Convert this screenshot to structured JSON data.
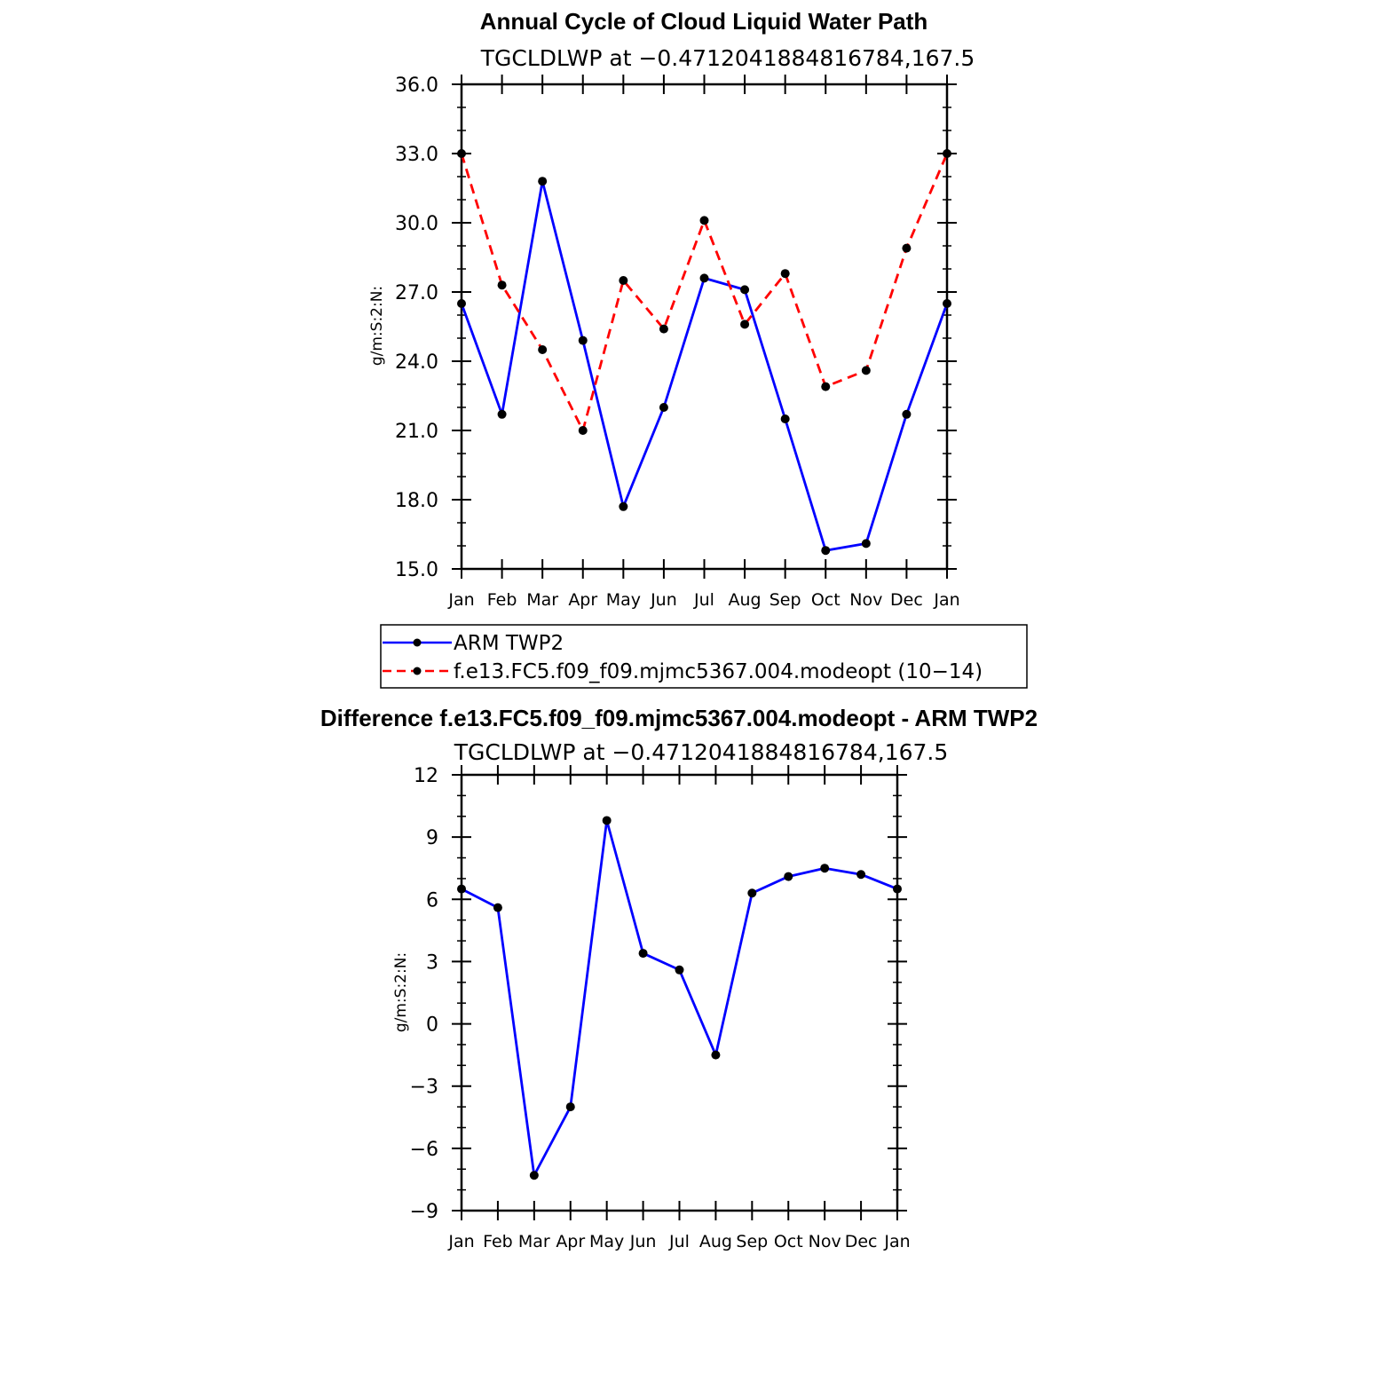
{
  "chart_data": [
    {
      "type": "line",
      "title": "Annual Cycle of Cloud Liquid Water Path",
      "subtitle": "TGCLDLWP at −0.4712041884816784,167.5",
      "ylabel": "g/m:S:2:N:",
      "ylim": [
        15,
        36
      ],
      "yticks": [
        "15.0",
        "18.0",
        "21.0",
        "24.0",
        "27.0",
        "30.0",
        "33.0",
        "36.0"
      ],
      "categories": [
        "Jan",
        "Feb",
        "Mar",
        "Apr",
        "May",
        "Jun",
        "Jul",
        "Aug",
        "Sep",
        "Oct",
        "Nov",
        "Dec",
        "Jan"
      ],
      "series": [
        {
          "name": "ARM TWP2",
          "color": "#0000ff",
          "dash": "solid",
          "values": [
            26.5,
            21.7,
            31.8,
            24.9,
            17.7,
            22.0,
            27.6,
            27.1,
            21.5,
            15.8,
            16.1,
            21.7,
            26.5
          ]
        },
        {
          "name": "f.e13.FC5.f09_f09.mjmc5367.004.modeopt (10−14)",
          "color": "#ff0000",
          "dash": "dashed",
          "values": [
            33.0,
            27.3,
            24.5,
            21.0,
            27.5,
            25.4,
            30.1,
            25.6,
            27.8,
            22.9,
            23.6,
            28.9,
            33.0
          ]
        }
      ],
      "legend": "bottom"
    },
    {
      "type": "line",
      "title": "Difference f.e13.FC5.f09_f09.mjmc5367.004.modeopt - ARM TWP2",
      "subtitle": "TGCLDLWP at −0.4712041884816784,167.5",
      "ylabel": "g/m:S:2:N:",
      "ylim": [
        -9,
        12
      ],
      "yticks": [
        "−9",
        "−6",
        "−3",
        "0",
        "3",
        "6",
        "9",
        "12"
      ],
      "categories": [
        "Jan",
        "Feb",
        "Mar",
        "Apr",
        "May",
        "Jun",
        "Jul",
        "Aug",
        "Sep",
        "Oct",
        "Nov",
        "Dec",
        "Jan"
      ],
      "series": [
        {
          "color": "#0000ff",
          "dash": "solid",
          "values": [
            6.5,
            5.6,
            -7.3,
            -4.0,
            9.8,
            3.4,
            2.6,
            -1.5,
            6.3,
            7.1,
            7.5,
            7.2,
            6.5
          ]
        }
      ]
    }
  ]
}
